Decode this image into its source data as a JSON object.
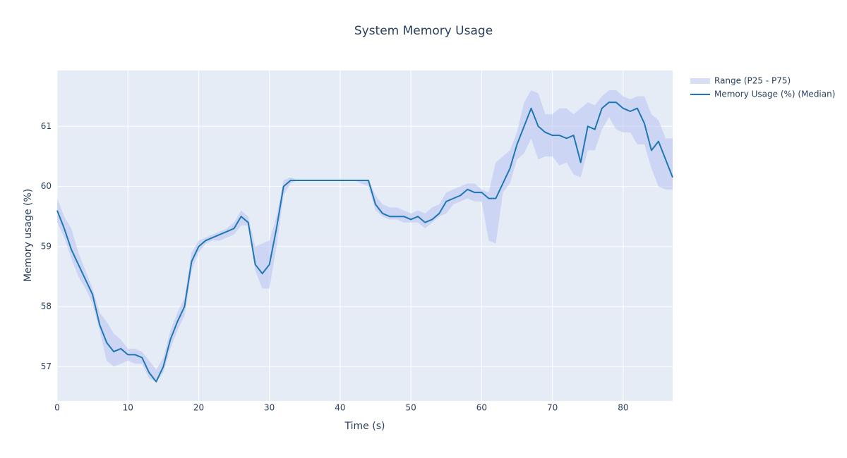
{
  "chart_data": {
    "type": "line",
    "title": "System Memory Usage",
    "x_label": "Time (s)",
    "y_label": "Memory usage (%)",
    "x": [
      0,
      1,
      2,
      3,
      4,
      5,
      6,
      7,
      8,
      9,
      10,
      11,
      12,
      13,
      14,
      15,
      16,
      17,
      18,
      19,
      20,
      21,
      22,
      23,
      24,
      25,
      26,
      27,
      28,
      29,
      30,
      31,
      32,
      33,
      34,
      35,
      36,
      37,
      38,
      39,
      40,
      41,
      42,
      43,
      44,
      45,
      46,
      47,
      48,
      49,
      50,
      51,
      52,
      53,
      54,
      55,
      56,
      57,
      58,
      59,
      60,
      61,
      62,
      63,
      64,
      65,
      66,
      67,
      68,
      69,
      70,
      71,
      72,
      73,
      74,
      75,
      76,
      77,
      78,
      79,
      80,
      81,
      82,
      83,
      84,
      85,
      86,
      87
    ],
    "series": [
      {
        "name": "Range (P25 - P75)",
        "color": "#b4bdf0",
        "upper": [
          59.8,
          59.5,
          59.3,
          58.9,
          58.6,
          58.3,
          57.9,
          57.75,
          57.55,
          57.45,
          57.3,
          57.3,
          57.25,
          57.1,
          56.95,
          57.15,
          57.6,
          57.9,
          58.15,
          58.9,
          59.1,
          59.15,
          59.2,
          59.25,
          59.3,
          59.4,
          59.6,
          59.5,
          59.0,
          59.05,
          59.1,
          59.5,
          60.1,
          60.15,
          60.1,
          60.1,
          60.1,
          60.1,
          60.1,
          60.1,
          60.1,
          60.1,
          60.1,
          60.1,
          60.1,
          59.85,
          59.7,
          59.65,
          59.65,
          59.6,
          59.55,
          59.6,
          59.55,
          59.65,
          59.7,
          59.9,
          59.95,
          60.0,
          60.05,
          60.05,
          59.95,
          59.9,
          60.4,
          60.5,
          60.6,
          60.9,
          61.4,
          61.6,
          61.55,
          61.2,
          61.2,
          61.3,
          61.3,
          61.2,
          61.3,
          61.4,
          61.35,
          61.5,
          61.6,
          61.6,
          61.5,
          61.45,
          61.5,
          61.5,
          61.2,
          61.1,
          60.8,
          60.8
        ],
        "lower": [
          59.4,
          59.15,
          58.8,
          58.5,
          58.3,
          58.05,
          57.6,
          57.1,
          57.0,
          57.05,
          57.1,
          57.05,
          57.05,
          56.8,
          56.75,
          56.9,
          57.3,
          57.6,
          57.85,
          58.6,
          58.9,
          59.05,
          59.1,
          59.1,
          59.15,
          59.2,
          59.35,
          59.35,
          58.6,
          58.3,
          58.3,
          59.0,
          59.85,
          60.05,
          60.1,
          60.1,
          60.1,
          60.1,
          60.1,
          60.1,
          60.1,
          60.1,
          60.1,
          60.05,
          60.0,
          59.6,
          59.5,
          59.45,
          59.45,
          59.4,
          59.4,
          59.4,
          59.3,
          59.4,
          59.5,
          59.55,
          59.7,
          59.75,
          59.8,
          59.75,
          59.75,
          59.1,
          59.05,
          59.9,
          60.05,
          60.45,
          60.55,
          60.8,
          60.45,
          60.5,
          60.5,
          60.35,
          60.4,
          60.2,
          60.15,
          60.6,
          60.6,
          60.95,
          61.15,
          60.95,
          60.9,
          60.9,
          60.7,
          60.7,
          60.3,
          60.0,
          59.95,
          59.95
        ]
      },
      {
        "name": "Memory Usage (%) (Median)",
        "color": "#1f77b4",
        "values": [
          59.6,
          59.3,
          58.95,
          58.7,
          58.45,
          58.2,
          57.7,
          57.4,
          57.25,
          57.3,
          57.2,
          57.2,
          57.15,
          56.9,
          56.75,
          57.0,
          57.45,
          57.75,
          58.0,
          58.75,
          59.0,
          59.1,
          59.15,
          59.2,
          59.25,
          59.3,
          59.5,
          59.4,
          58.7,
          58.55,
          58.7,
          59.3,
          60.0,
          60.1,
          60.1,
          60.1,
          60.1,
          60.1,
          60.1,
          60.1,
          60.1,
          60.1,
          60.1,
          60.1,
          60.1,
          59.7,
          59.55,
          59.5,
          59.5,
          59.5,
          59.45,
          59.5,
          59.4,
          59.45,
          59.55,
          59.75,
          59.8,
          59.85,
          59.95,
          59.9,
          59.9,
          59.8,
          59.8,
          60.05,
          60.3,
          60.7,
          61.0,
          61.3,
          61.0,
          60.9,
          60.85,
          60.85,
          60.8,
          60.85,
          60.4,
          61.0,
          60.95,
          61.3,
          61.4,
          61.4,
          61.3,
          61.25,
          61.3,
          61.05,
          60.6,
          60.75,
          60.45,
          60.15
        ]
      }
    ],
    "xlim": [
      0,
      87
    ],
    "ylim": [
      56.43,
      61.93
    ],
    "xticks": [
      0,
      10,
      20,
      30,
      40,
      50,
      60,
      70,
      80
    ],
    "yticks": [
      57,
      58,
      59,
      60,
      61
    ],
    "grid": true,
    "legend": "outside-right"
  }
}
